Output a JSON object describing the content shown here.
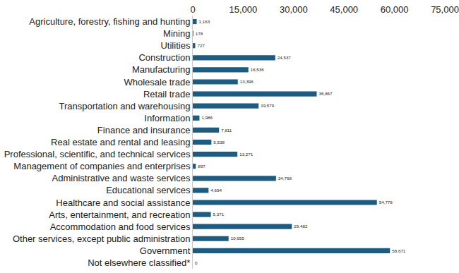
{
  "chart_data": {
    "type": "bar",
    "orientation": "horizontal",
    "categories": [
      "Agriculture, forestry, fishing and hunting",
      "Mining",
      "Utilities",
      "Construction",
      "Manufacturing",
      "Wholesale trade",
      "Retail trade",
      "Transportation and warehousing",
      "Information",
      "Finance and insurance",
      "Real estate and rental and leasing",
      "Professional, scientific, and technical services",
      "Management of companies and enterprises",
      "Administrative and waste services",
      "Educational services",
      "Healthcare and social assistance",
      "Arts, entertainment, and recreation",
      "Accommodation and food services",
      "Other services, except public administration",
      "Government",
      "Not elsewhere classified*"
    ],
    "values": [
      1163,
      178,
      727,
      24537,
      16536,
      13396,
      36867,
      19579,
      1986,
      7811,
      5538,
      13271,
      897,
      24768,
      4694,
      54778,
      5371,
      29482,
      10655,
      58671,
      0
    ],
    "value_labels": [
      "1,163",
      "178",
      "727",
      "24,537",
      "16,536",
      "13,396",
      "36,867",
      "19,579",
      "1,986",
      "7,811",
      "5,538",
      "13,271",
      "897",
      "24,768",
      "4,694",
      "54,778",
      "5,371",
      "29,482",
      "10,655",
      "58,671",
      "0"
    ],
    "data_labels": true,
    "color": "#1d5b80",
    "xlim": [
      0,
      75000
    ],
    "xticks": [
      0,
      {
        "value": 15000,
        "label": "15,000"
      },
      {
        "value": 30000,
        "label": "30,000"
      },
      {
        "value": 45000,
        "label": "45,000"
      },
      {
        "value": 60000,
        "label": "60,000"
      },
      {
        "value": 75000,
        "label": "75,000"
      }
    ],
    "grid": false
  }
}
